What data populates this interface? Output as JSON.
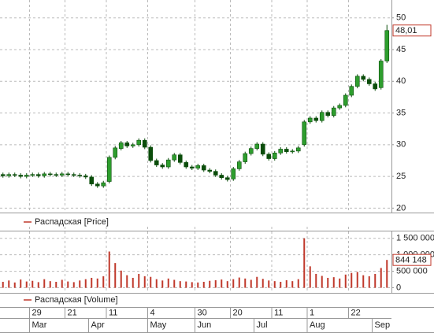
{
  "chart_data": [
    {
      "type": "candlestick",
      "series": [
        {
          "name": "Распадская [Price]",
          "color": "#c0392b",
          "up_color": "#2e9e2e",
          "down_color": "#0b4d0b",
          "open": [
            25.3,
            25.1,
            25.3,
            25.2,
            25.0,
            25.2,
            25.3,
            25.1,
            25.4,
            25.3,
            25.2,
            25.4,
            25.3,
            25.2,
            25.1,
            24.9,
            23.8,
            23.5,
            24.2,
            28.0,
            29.4,
            30.3,
            29.8,
            30.0,
            30.7,
            29.6,
            27.5,
            26.8,
            26.5,
            27.6,
            28.4,
            27.2,
            26.5,
            26.3,
            26.7,
            26.0,
            25.8,
            25.2,
            24.8,
            24.6,
            26.2,
            27.3,
            28.6,
            29.4,
            30.1,
            28.5,
            27.8,
            28.7,
            29.3,
            28.9,
            29.0,
            30.0,
            33.6,
            34.2,
            33.8,
            35.1,
            34.6,
            35.8,
            36.2,
            37.8,
            39.2,
            40.8,
            40.3,
            39.6,
            39.0,
            43.2
          ],
          "high": [
            25.6,
            25.6,
            25.6,
            25.5,
            25.5,
            25.6,
            25.6,
            25.7,
            25.7,
            25.6,
            25.7,
            25.7,
            25.6,
            25.5,
            25.4,
            25.2,
            24.1,
            24.3,
            28.3,
            29.8,
            30.6,
            30.6,
            30.3,
            31.0,
            31.0,
            29.9,
            27.8,
            27.1,
            27.9,
            28.7,
            28.7,
            27.5,
            26.8,
            27.0,
            27.0,
            26.3,
            26.1,
            25.5,
            25.1,
            26.5,
            27.6,
            28.9,
            29.7,
            30.4,
            30.4,
            28.8,
            29.0,
            29.6,
            29.6,
            29.3,
            29.8,
            33.9,
            34.5,
            34.5,
            35.4,
            35.4,
            36.1,
            36.5,
            38.1,
            39.5,
            41.1,
            41.1,
            40.6,
            39.9,
            43.5,
            48.9
          ],
          "low": [
            24.8,
            24.8,
            24.9,
            24.7,
            24.7,
            24.9,
            24.8,
            24.8,
            25.0,
            24.9,
            24.9,
            25.0,
            24.9,
            24.8,
            24.6,
            23.5,
            23.2,
            23.2,
            23.9,
            27.7,
            29.1,
            29.5,
            29.5,
            29.7,
            29.3,
            27.2,
            26.5,
            26.2,
            26.2,
            27.3,
            26.9,
            26.2,
            26.0,
            26.0,
            25.7,
            25.5,
            24.9,
            24.5,
            24.2,
            24.3,
            25.9,
            27.0,
            28.3,
            29.1,
            28.2,
            27.5,
            27.5,
            28.4,
            28.6,
            28.6,
            28.7,
            29.7,
            33.3,
            33.5,
            33.5,
            34.3,
            34.3,
            35.5,
            35.9,
            37.5,
            38.9,
            40.0,
            39.3,
            38.5,
            38.7,
            42.9
          ],
          "close": [
            25.1,
            25.3,
            25.2,
            25.0,
            25.2,
            25.3,
            25.1,
            25.4,
            25.3,
            25.2,
            25.4,
            25.3,
            25.2,
            25.1,
            24.9,
            23.8,
            23.5,
            24.0,
            28.0,
            29.5,
            30.3,
            29.8,
            30.0,
            30.7,
            29.6,
            27.5,
            26.8,
            26.5,
            27.6,
            28.4,
            27.2,
            26.5,
            26.3,
            26.7,
            26.0,
            25.8,
            25.2,
            24.8,
            24.5,
            26.2,
            27.3,
            28.6,
            29.4,
            30.1,
            28.5,
            27.8,
            28.7,
            29.3,
            28.9,
            29.0,
            29.5,
            33.6,
            34.2,
            33.8,
            35.1,
            34.6,
            35.8,
            36.2,
            37.8,
            39.2,
            40.8,
            40.3,
            39.6,
            38.8,
            43.2,
            48.01
          ]
        }
      ],
      "last_label": {
        "value": 48.01,
        "label": "48,01"
      },
      "ylim": [
        19.3,
        52.2
      ],
      "yticks": [
        20,
        25,
        30,
        35,
        40,
        45,
        50
      ],
      "grid": true
    },
    {
      "type": "bar",
      "series": [
        {
          "name": "Распадская [Volume]",
          "color": "#c0392b",
          "values": [
            180000,
            220000,
            160000,
            250000,
            190000,
            210000,
            170000,
            260000,
            200000,
            180000,
            240000,
            190000,
            170000,
            220000,
            260000,
            300000,
            280000,
            350000,
            1100000,
            750000,
            520000,
            380000,
            300000,
            420000,
            350000,
            330000,
            260000,
            220000,
            280000,
            240000,
            200000,
            190000,
            170000,
            160000,
            180000,
            210000,
            230000,
            250000,
            200000,
            260000,
            310000,
            280000,
            240000,
            330000,
            270000,
            220000,
            200000,
            180000,
            230000,
            200000,
            260000,
            1500000,
            650000,
            420000,
            360000,
            300000,
            320000,
            280000,
            400000,
            450000,
            480000,
            380000,
            350000,
            420000,
            600000,
            844148
          ]
        }
      ],
      "last_label": {
        "value": 844148,
        "label": "844 148"
      },
      "ylim": [
        -155000,
        1733000
      ],
      "yticks": [
        0,
        {
          "value": 500000,
          "label": "500 000"
        },
        {
          "value": 1000000,
          "label": "1 000 000"
        },
        {
          "value": 1500000,
          "label": "1 500 000"
        }
      ],
      "grid": true,
      "xticks": [
        {
          "value": 5,
          "label": "29"
        },
        {
          "value": 11,
          "label": "21"
        },
        {
          "value": 18,
          "label": "11"
        },
        {
          "value": 25,
          "label": "4"
        },
        {
          "value": 33,
          "label": "30"
        },
        {
          "value": 39,
          "label": "20"
        },
        {
          "value": 46,
          "label": "11"
        },
        {
          "value": 52,
          "label": "1"
        },
        {
          "value": 59,
          "label": "22"
        }
      ],
      "month_ticks": [
        {
          "value": 5,
          "label": "Mar"
        },
        {
          "value": 15,
          "label": "Apr"
        },
        {
          "value": 25,
          "label": "May"
        },
        {
          "value": 33,
          "label": "Jun"
        },
        {
          "value": 43,
          "label": "Jul"
        },
        {
          "value": 52,
          "label": "Aug"
        },
        {
          "value": 63,
          "label": "Sep"
        }
      ]
    }
  ]
}
